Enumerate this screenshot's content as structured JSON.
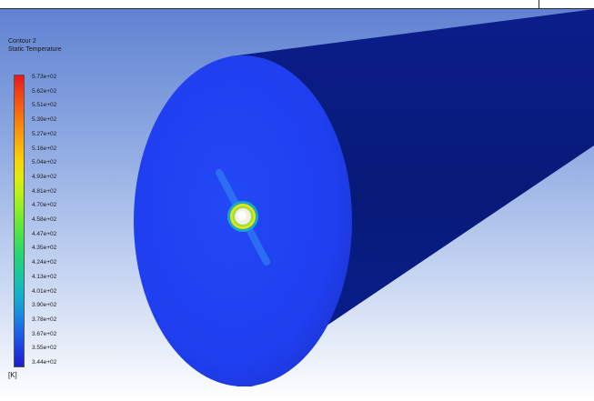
{
  "legend": {
    "title": "Contour 2",
    "variable": "Static Temperature",
    "unit": "[K]",
    "values": [
      "5.73e+02",
      "5.62e+02",
      "5.51e+02",
      "5.39e+02",
      "5.27e+02",
      "5.16e+02",
      "5.04e+02",
      "4.93e+02",
      "4.81e+02",
      "4.70e+02",
      "4.58e+02",
      "4.47e+02",
      "4.35e+02",
      "4.24e+02",
      "4.13e+02",
      "4.01e+02",
      "3.90e+02",
      "3.78e+02",
      "3.67e+02",
      "3.55e+02",
      "3.44e+02"
    ],
    "colors": [
      "#e8161b",
      "#ef3b16",
      "#f35a13",
      "#f67a10",
      "#f99a0d",
      "#fbb90a",
      "#f8d60a",
      "#e2ea0e",
      "#bcf017",
      "#95ef24",
      "#6ee935",
      "#4ae24b",
      "#2fd967",
      "#1fcf88",
      "#18c3a9",
      "#16b2c6",
      "#1898dc",
      "#1a78e6",
      "#1c56e8",
      "#1c37e0",
      "#1a1fcc"
    ]
  },
  "model": {
    "face_color": "#1f3ff0",
    "body_color": "#07177a"
  }
}
